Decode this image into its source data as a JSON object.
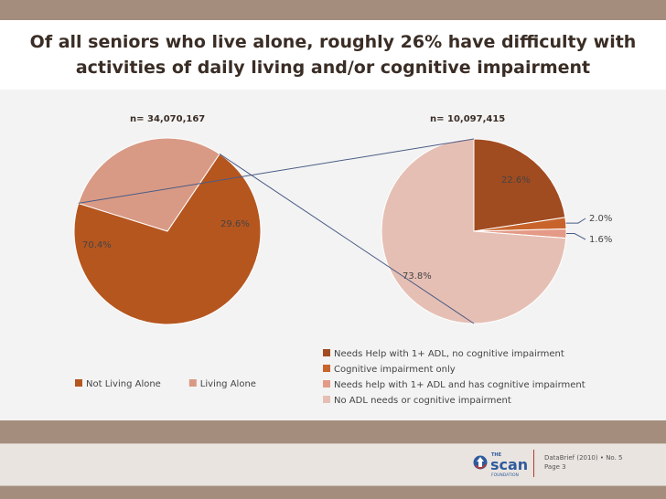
{
  "slide": {
    "title_line1": "Of all seniors who live alone, roughly 26% have difficulty with",
    "title_line2": "activities of daily living and/or cognitive impairment"
  },
  "chart_data": [
    {
      "type": "pie",
      "title": "n= 34,070,167",
      "categories": [
        "Not Living Alone",
        "Living Alone"
      ],
      "values": [
        70.4,
        29.6
      ],
      "labels": [
        "70.4%",
        "29.6%"
      ],
      "colors": [
        "#b5561f",
        "#d99a85"
      ],
      "legend_position": "bottom"
    },
    {
      "type": "pie",
      "title": "n= 10,097,415",
      "categories": [
        "Needs Help with 1+ ADL, no cognitive impairment",
        "Cognitive impairment only",
        "Needs help with 1+ ADL and has cognitive impairment",
        "No ADL needs or cognitive impairment"
      ],
      "values": [
        22.6,
        2.0,
        1.6,
        73.8
      ],
      "labels": [
        "22.6%",
        "2.0%",
        "1.6%",
        "73.8%"
      ],
      "colors": [
        "#a14b20",
        "#c8642b",
        "#e49a87",
        "#e6bfb4"
      ],
      "legend_position": "bottom"
    }
  ],
  "footer": {
    "databrief_line": "DataBrief (2010) • No. 5",
    "page_line": "Page 3",
    "logo_the": "THE",
    "logo_scan": "scan",
    "logo_foundation": "FOUNDATION"
  },
  "colors": {
    "connector": "#4a5c85",
    "background": "#a48d7d"
  }
}
